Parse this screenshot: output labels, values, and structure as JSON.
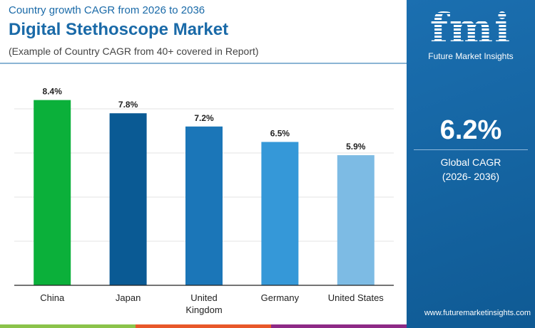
{
  "header": {
    "subtitle": "Country growth CAGR from 2026 to 2036",
    "title": "Digital Stethoscope Market",
    "note": "(Example of Country CAGR from 40+ covered in Report)"
  },
  "sidebar": {
    "logo": "fmi",
    "brand": "Future Market Insights",
    "cagr_value": "6.2%",
    "cagr_label": "Global CAGR",
    "cagr_period": "(2026- 2036)",
    "url": "www.futuremarketinsights.com",
    "color": "#1b6fb0"
  },
  "bottom_colors": [
    "#8bc34a",
    "#e8582a",
    "#8e2a86"
  ],
  "chart_data": {
    "type": "bar",
    "categories": [
      "China",
      "Japan",
      "United Kingdom",
      "Germany",
      "United States"
    ],
    "category_lines": [
      [
        "China"
      ],
      [
        "Japan"
      ],
      [
        "United",
        "Kingdom"
      ],
      [
        "Germany"
      ],
      [
        "United States"
      ]
    ],
    "values": [
      8.4,
      7.8,
      7.2,
      6.5,
      5.9
    ],
    "labels": [
      "8.4%",
      "7.8%",
      "7.2%",
      "6.5%",
      "5.9%"
    ],
    "colors": [
      "#0bb03a",
      "#0a5a94",
      "#1b76b8",
      "#3598d8",
      "#7dbbe4"
    ],
    "ylim": [
      0,
      10
    ],
    "grid": true,
    "grid_step": 2
  }
}
